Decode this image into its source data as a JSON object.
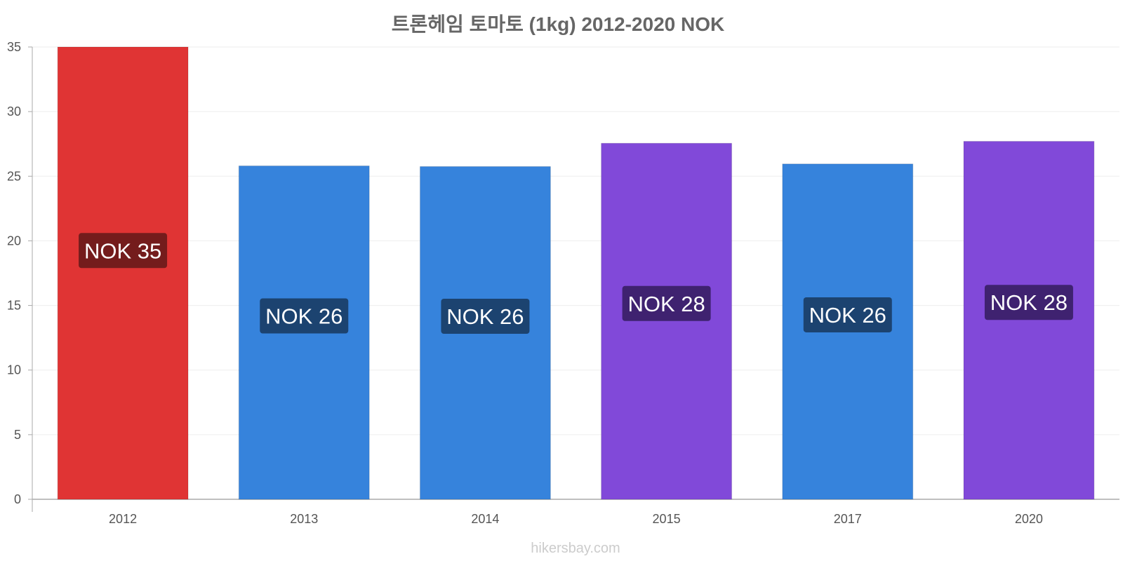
{
  "chart_data": {
    "type": "bar",
    "title": "트론헤임 토마토 (1kg) 2012-2020 NOK",
    "categories": [
      "2012",
      "2013",
      "2014",
      "2015",
      "2017",
      "2020"
    ],
    "values": [
      35,
      25.8,
      25.75,
      27.55,
      25.95,
      27.7
    ],
    "data_labels": [
      "NOK 35",
      "NOK 26",
      "NOK 26",
      "NOK 28",
      "NOK 26",
      "NOK 28"
    ],
    "bar_colors": [
      "#e03434",
      "#3683dc",
      "#3683dc",
      "#8149d9",
      "#3683dc",
      "#8149d9"
    ],
    "label_bg_colors": [
      "#741c1c",
      "#1c4370",
      "#1c4370",
      "#3f2270",
      "#1c4370",
      "#3f2270"
    ],
    "ylim": [
      0,
      35
    ],
    "yticks": [
      0,
      5,
      10,
      15,
      20,
      25,
      30,
      35
    ],
    "xlabel": "",
    "ylabel": "",
    "grid": true
  },
  "footer": {
    "source": "hikersbay.com"
  }
}
